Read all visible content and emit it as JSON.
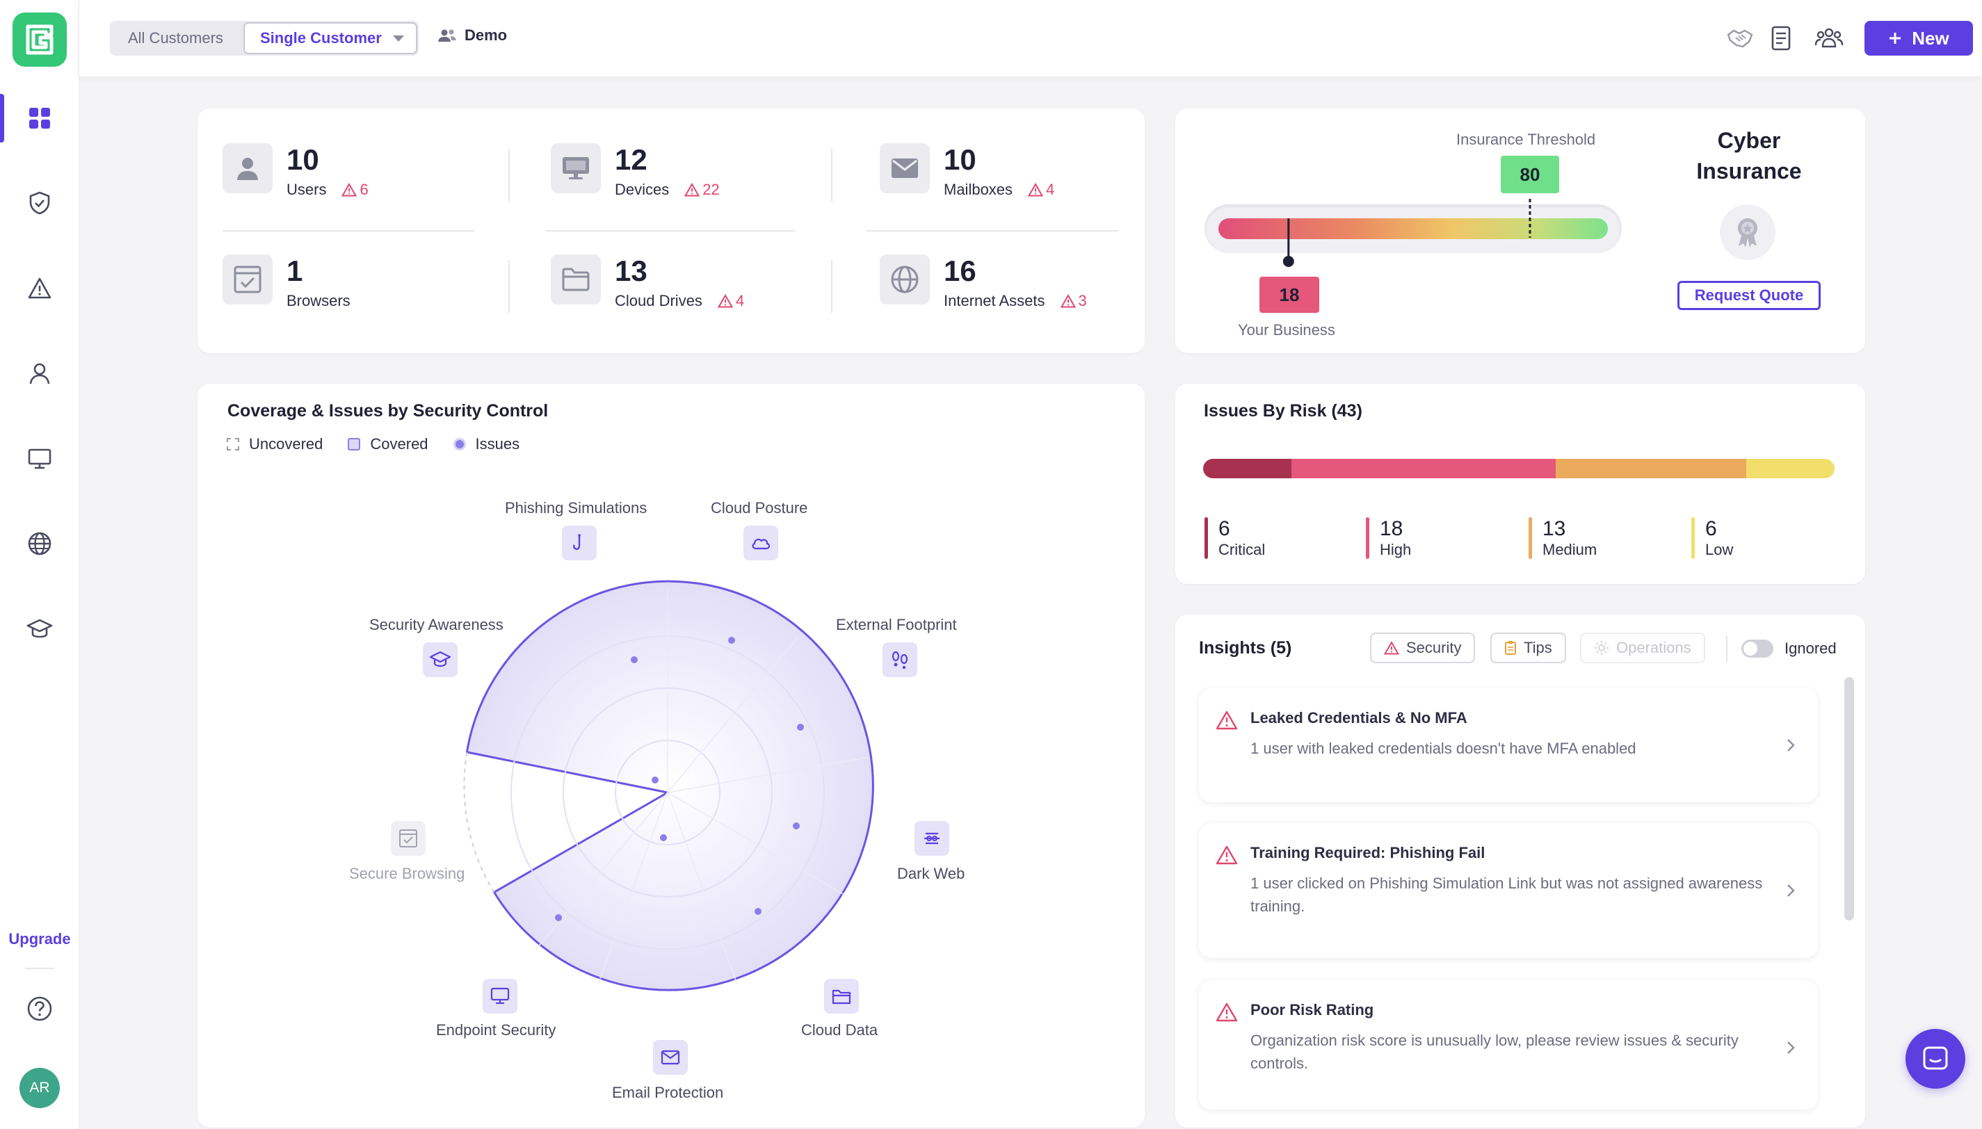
{
  "sidebar": {
    "upgrade_label": "Upgrade",
    "avatar_initials": "AR",
    "items": [
      "dashboard-icon",
      "shield-check-icon",
      "alert-triangle-icon",
      "user-icon",
      "monitor-icon",
      "globe-icon",
      "graduation-cap-icon"
    ]
  },
  "topbar": {
    "segment_all": "All Customers",
    "segment_single": "Single Customer",
    "org_name": "Demo",
    "new_label": "New"
  },
  "assets": [
    {
      "count": "10",
      "label": "Users",
      "issues": "6",
      "icon": "user-icon"
    },
    {
      "count": "12",
      "label": "Devices",
      "issues": "22",
      "icon": "monitor-icon"
    },
    {
      "count": "10",
      "label": "Mailboxes",
      "issues": "4",
      "icon": "mail-icon"
    },
    {
      "count": "1",
      "label": "Browsers",
      "issues": "",
      "icon": "browser-icon"
    },
    {
      "count": "13",
      "label": "Cloud Drives",
      "issues": "4",
      "icon": "folder-icon"
    },
    {
      "count": "16",
      "label": "Internet Assets",
      "issues": "3",
      "icon": "globe-icon"
    }
  ],
  "insurance": {
    "threshold_label": "Insurance Threshold",
    "threshold_value": "80",
    "business_value": "18",
    "business_label": "Your Business",
    "title_line1": "Cyber",
    "title_line2": "Insurance",
    "quote_label": "Request Quote",
    "scale": {
      "min": 0,
      "max": 100
    }
  },
  "coverage": {
    "title": "Coverage & Issues by Security Control",
    "legend": {
      "uncovered": "Uncovered",
      "covered": "Covered",
      "issues": "Issues"
    },
    "controls": [
      {
        "label": "Phishing Simulations",
        "covered": true
      },
      {
        "label": "Cloud Posture",
        "covered": true
      },
      {
        "label": "External Footprint",
        "covered": true
      },
      {
        "label": "Dark Web",
        "covered": true
      },
      {
        "label": "Cloud Data",
        "covered": true
      },
      {
        "label": "Email Protection",
        "covered": true
      },
      {
        "label": "Endpoint Security",
        "covered": true
      },
      {
        "label": "Secure Browsing",
        "covered": false
      },
      {
        "label": "Security Awareness",
        "covered": true
      }
    ]
  },
  "risk": {
    "title": "Issues By Risk (43)",
    "levels": [
      {
        "count": "6",
        "label": "Critical",
        "color": "#a83150",
        "value": 6
      },
      {
        "count": "18",
        "label": "High",
        "color": "#e5577b",
        "value": 18
      },
      {
        "count": "13",
        "label": "Medium",
        "color": "#ebaa5c",
        "value": 13
      },
      {
        "count": "6",
        "label": "Low",
        "color": "#f2de6a",
        "value": 6
      }
    ]
  },
  "insights": {
    "title": "Insights (5)",
    "filters": {
      "security": "Security",
      "tips": "Tips",
      "operations": "Operations",
      "ignored": "Ignored"
    },
    "items": [
      {
        "title": "Leaked Credentials & No MFA",
        "desc": "1 user with leaked credentials doesn't have MFA enabled"
      },
      {
        "title": "Training Required: Phishing Fail",
        "desc": "1 user clicked on Phishing Simulation Link but was not assigned awareness training."
      },
      {
        "title": "Poor Risk Rating",
        "desc": "Organization risk score is unusually low, please review issues & security controls."
      }
    ]
  }
}
